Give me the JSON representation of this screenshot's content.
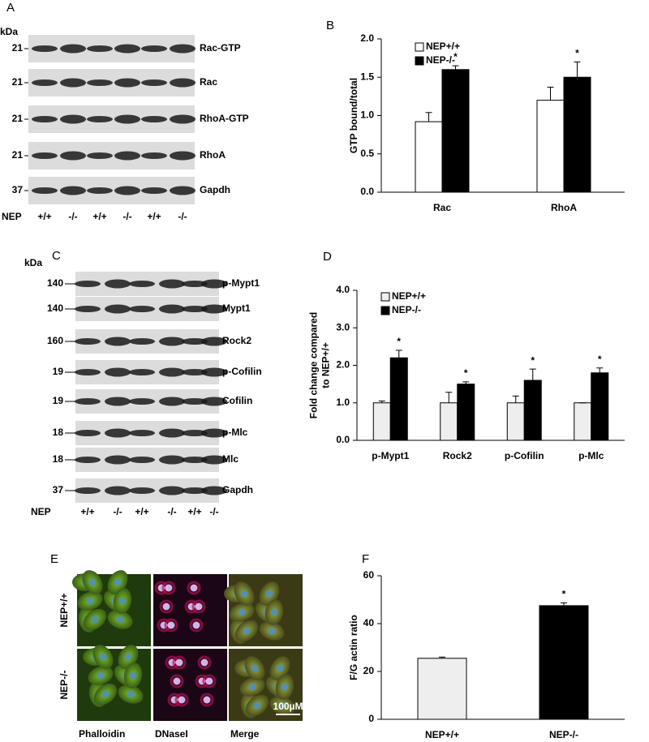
{
  "panel_labels": [
    "A",
    "B",
    "C",
    "D",
    "E",
    "F"
  ],
  "blots": [
    {
      "kda_label": "kDa",
      "genotype_label": "NEP",
      "lanes": [
        "+/+",
        "-/-",
        "+/+",
        "-/-",
        "+/+",
        "-/-"
      ],
      "rows": [
        {
          "kda": "21",
          "label": "Rac-GTP"
        },
        {
          "kda": "21",
          "label": "Rac"
        },
        {
          "kda": "21",
          "label": "RhoA-GTP"
        },
        {
          "kda": "21",
          "label": "RhoA"
        },
        {
          "kda": "37",
          "label": "Gapdh"
        }
      ]
    },
    {
      "kda_label": "kDa",
      "genotype_label": "NEP",
      "lanes": [
        "+/+",
        "-/-",
        "+/+",
        "-/-",
        "+/+",
        "-/-"
      ],
      "rows": [
        {
          "kda": "140",
          "label": "p-Mypt1"
        },
        {
          "kda": "140",
          "label": "Mypt1"
        },
        {
          "kda": "160",
          "label": "Rock2"
        },
        {
          "kda": "19",
          "label": "p-Cofilin"
        },
        {
          "kda": "19",
          "label": "Cofilin"
        },
        {
          "kda": "18",
          "label": "p-Mlc"
        },
        {
          "kda": "18",
          "label": "Mlc"
        },
        {
          "kda": "37",
          "label": "Gapdh"
        }
      ]
    }
  ],
  "images": {
    "columns": [
      "Phalloidin",
      "DNaseI",
      "Merge"
    ],
    "rows": [
      "NEP+/+",
      "NEP-/-"
    ],
    "scale_bar": "100µM"
  },
  "chart_data": [
    {
      "type": "bar",
      "ylabel": [
        "GTP bound/total"
      ],
      "categories": [
        "Rac",
        "RhoA"
      ],
      "ylim": [
        0,
        2
      ],
      "yticks": [
        {
          "value": 0,
          "label": "0.0"
        },
        0.5,
        {
          "value": 1,
          "label": "1.0"
        },
        1.5,
        {
          "value": 2,
          "label": "2.0"
        }
      ],
      "legend": "top-left",
      "series": [
        {
          "name": "NEP+/+",
          "color": "#ffffff",
          "values": [
            0.92,
            1.2
          ],
          "errors": [
            0.12,
            0.17
          ]
        },
        {
          "name": "NEP-/-",
          "color": "#000000",
          "values": [
            1.6,
            1.5
          ],
          "errors": [
            0.05,
            0.2
          ],
          "significance": [
            "*",
            "*"
          ]
        }
      ]
    },
    {
      "type": "bar",
      "ylabel": [
        "Fold change compared",
        "to NEP+/+"
      ],
      "categories": [
        "p-Mypt1",
        "Rock2",
        "p-Cofilin",
        "p-Mlc"
      ],
      "ylim": [
        0,
        4
      ],
      "yticks": [
        {
          "value": 0,
          "label": "0.0"
        },
        {
          "value": 1,
          "label": "1.0"
        },
        {
          "value": 2,
          "label": "2.0"
        },
        {
          "value": 3,
          "label": "3.0"
        },
        {
          "value": 4,
          "label": "4.0"
        }
      ],
      "legend": "top-left",
      "series": [
        {
          "name": "NEP+/+",
          "color": "#eeeeee",
          "values": [
            1,
            1,
            1,
            1
          ],
          "errors": [
            0.05,
            0.28,
            0.18,
            0
          ]
        },
        {
          "name": "NEP-/-",
          "color": "#000000",
          "values": [
            2.2,
            1.5,
            1.6,
            1.8
          ],
          "errors": [
            0.2,
            0.06,
            0.3,
            0.13
          ],
          "significance": [
            "*",
            "*",
            "*",
            "*"
          ]
        }
      ]
    },
    {
      "type": "bar",
      "ylabel": [
        "F/G actin ratio"
      ],
      "categories": [
        "NEP+/+",
        "NEP-/-"
      ],
      "ylim": [
        0,
        60
      ],
      "yticks": [
        0,
        20,
        40,
        60
      ],
      "series": [
        {
          "colors": [
            "#eeeeee",
            "#000000"
          ],
          "values": [
            25.5,
            47.5
          ],
          "errors": [
            0.5,
            1.2
          ],
          "significance": [
            null,
            "*"
          ]
        }
      ]
    }
  ]
}
